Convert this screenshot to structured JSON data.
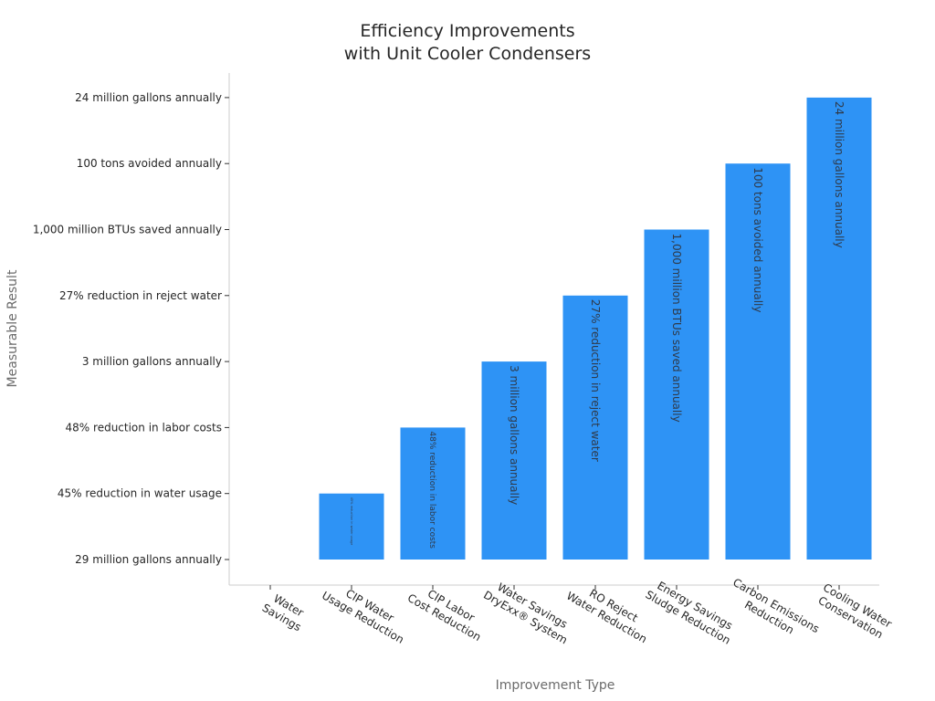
{
  "chart_data": {
    "type": "bar",
    "title": [
      "Efficiency Improvements",
      "with Unit Cooler Condensers"
    ],
    "xlabel": "Improvement Type",
    "ylabel": "Measurable Result",
    "categories": [
      [
        "Water",
        "Savings"
      ],
      [
        "CIP Water",
        "Usage Reduction"
      ],
      [
        "CIP Labor",
        "Cost Reduction"
      ],
      [
        "Water Savings",
        "DryExx® System"
      ],
      [
        "RO Reject",
        "Water Reduction"
      ],
      [
        "Energy Savings",
        "Sludge Reduction"
      ],
      [
        "Carbon Emissions",
        "Reduction"
      ],
      [
        "Cooling Water",
        "Conservation"
      ]
    ],
    "y_ticks": [
      "29 million gallons annually",
      "45% reduction in water usage",
      "48% reduction in labor costs",
      "3 million gallons annually",
      "27% reduction in reject water",
      "1,000 million BTUs saved annually",
      "100 tons avoided annually",
      "24 million gallons annually"
    ],
    "values": [
      0,
      1,
      2,
      3,
      4,
      5,
      6,
      7
    ],
    "bar_labels": [
      "29 million gallons annually",
      "45% reduction in water usage",
      "48% reduction in labor costs",
      "3 million gallons annually",
      "27% reduction in reject water",
      "1,000 million BTUs saved annually",
      "100 tons avoided annually",
      "24 million gallons annually"
    ],
    "colors": {
      "bar": "#2e93f5",
      "axis": "#cccccc",
      "text": "#262626"
    },
    "grid": false,
    "legend": "none"
  }
}
